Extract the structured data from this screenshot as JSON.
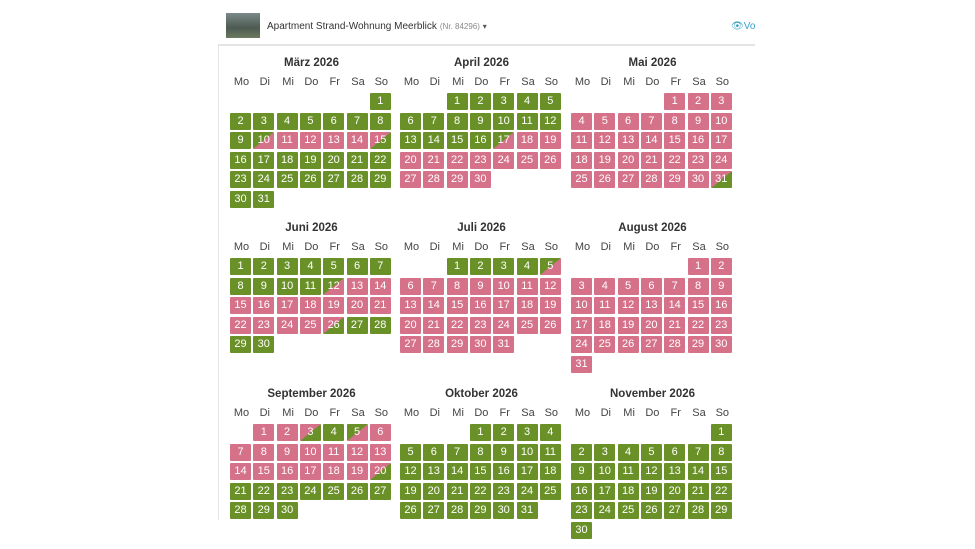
{
  "header": {
    "title": "Apartment Strand-Wohnung Meerblick",
    "number": "(Nr. 84296)",
    "link": "Vo"
  },
  "weekdays": [
    "Mo",
    "Di",
    "Mi",
    "Do",
    "Fr",
    "Sa",
    "So"
  ],
  "colors": {
    "f": "#6a9128",
    "b": "#d6718a"
  },
  "months": [
    {
      "title": "März 2026",
      "weeks": [
        [
          null,
          null,
          null,
          null,
          null,
          null,
          1
        ],
        [
          2,
          3,
          4,
          5,
          6,
          7,
          8
        ],
        [
          9,
          10,
          11,
          12,
          13,
          14,
          15
        ],
        [
          16,
          17,
          18,
          19,
          20,
          21,
          22
        ],
        [
          23,
          24,
          25,
          26,
          27,
          28,
          29
        ],
        [
          30,
          31
        ]
      ],
      "states": "fffffffffabbbbdffffffffffffffff"
    },
    {
      "title": "April 2026",
      "weeks": [
        [
          null,
          null,
          1,
          2,
          3,
          4,
          5
        ],
        [
          6,
          7,
          8,
          9,
          10,
          11,
          12
        ],
        [
          13,
          14,
          15,
          16,
          17,
          18,
          19
        ],
        [
          20,
          21,
          22,
          23,
          24,
          25,
          26
        ],
        [
          27,
          28,
          29,
          30
        ]
      ],
      "states": "ffffffffffffffffabbbbbbbbbbbbb"
    },
    {
      "title": "Mai 2026",
      "weeks": [
        [
          null,
          null,
          null,
          null,
          1,
          2,
          3
        ],
        [
          4,
          5,
          6,
          7,
          8,
          9,
          10
        ],
        [
          11,
          12,
          13,
          14,
          15,
          16,
          17
        ],
        [
          18,
          19,
          20,
          21,
          22,
          23,
          24
        ],
        [
          25,
          26,
          27,
          28,
          29,
          30,
          31
        ]
      ],
      "states": "bbbbbbbbbbbbbbbbbbbbbbbbbbbbbbd"
    },
    {
      "title": "Juni 2026",
      "weeks": [
        [
          1,
          2,
          3,
          4,
          5,
          6,
          7
        ],
        [
          8,
          9,
          10,
          11,
          12,
          13,
          14
        ],
        [
          15,
          16,
          17,
          18,
          19,
          20,
          21
        ],
        [
          22,
          23,
          24,
          25,
          26,
          27,
          28
        ],
        [
          29,
          30
        ]
      ],
      "states": "fffffffffffabbbbbbbbbbbbbdffff"
    },
    {
      "title": "Juli 2026",
      "weeks": [
        [
          null,
          null,
          1,
          2,
          3,
          4,
          5
        ],
        [
          6,
          7,
          8,
          9,
          10,
          11,
          12
        ],
        [
          13,
          14,
          15,
          16,
          17,
          18,
          19
        ],
        [
          20,
          21,
          22,
          23,
          24,
          25,
          26
        ],
        [
          27,
          28,
          29,
          30,
          31
        ]
      ],
      "states": "ffffabbbbbbbbbbbbbbbbbbbbbbbbbb"
    },
    {
      "title": "August 2026",
      "weeks": [
        [
          null,
          null,
          null,
          null,
          null,
          1,
          2
        ],
        [
          3,
          4,
          5,
          6,
          7,
          8,
          9
        ],
        [
          10,
          11,
          12,
          13,
          14,
          15,
          16
        ],
        [
          17,
          18,
          19,
          20,
          21,
          22,
          23
        ],
        [
          24,
          25,
          26,
          27,
          28,
          29,
          30
        ],
        [
          31
        ]
      ],
      "states": "bbbbbbbbbbbbbbbbbbbbbbbbbbbbbbb"
    },
    {
      "title": "September 2026",
      "weeks": [
        [
          null,
          1,
          2,
          3,
          4,
          5,
          6
        ],
        [
          7,
          8,
          9,
          10,
          11,
          12,
          13
        ],
        [
          14,
          15,
          16,
          17,
          18,
          19,
          20
        ],
        [
          21,
          22,
          23,
          24,
          25,
          26,
          27
        ],
        [
          28,
          29,
          30
        ]
      ],
      "states": "bbdfabbbbbbbbbbbbbbdffffffffff"
    },
    {
      "title": "Oktober 2026",
      "weeks": [
        [
          null,
          null,
          null,
          1,
          2,
          3,
          4
        ],
        [
          5,
          6,
          7,
          8,
          9,
          10,
          11
        ],
        [
          12,
          13,
          14,
          15,
          16,
          17,
          18
        ],
        [
          19,
          20,
          21,
          22,
          23,
          24,
          25
        ],
        [
          26,
          27,
          28,
          29,
          30,
          31
        ]
      ],
      "states": "fffffffffffffffffffffffffffffff"
    },
    {
      "title": "November 2026",
      "weeks": [
        [
          null,
          null,
          null,
          null,
          null,
          null,
          1
        ],
        [
          2,
          3,
          4,
          5,
          6,
          7,
          8
        ],
        [
          9,
          10,
          11,
          12,
          13,
          14,
          15
        ],
        [
          16,
          17,
          18,
          19,
          20,
          21,
          22
        ],
        [
          23,
          24,
          25,
          26,
          27,
          28,
          29
        ],
        [
          30
        ]
      ],
      "states": "ffffffffffffffffffffffffffffff"
    }
  ]
}
